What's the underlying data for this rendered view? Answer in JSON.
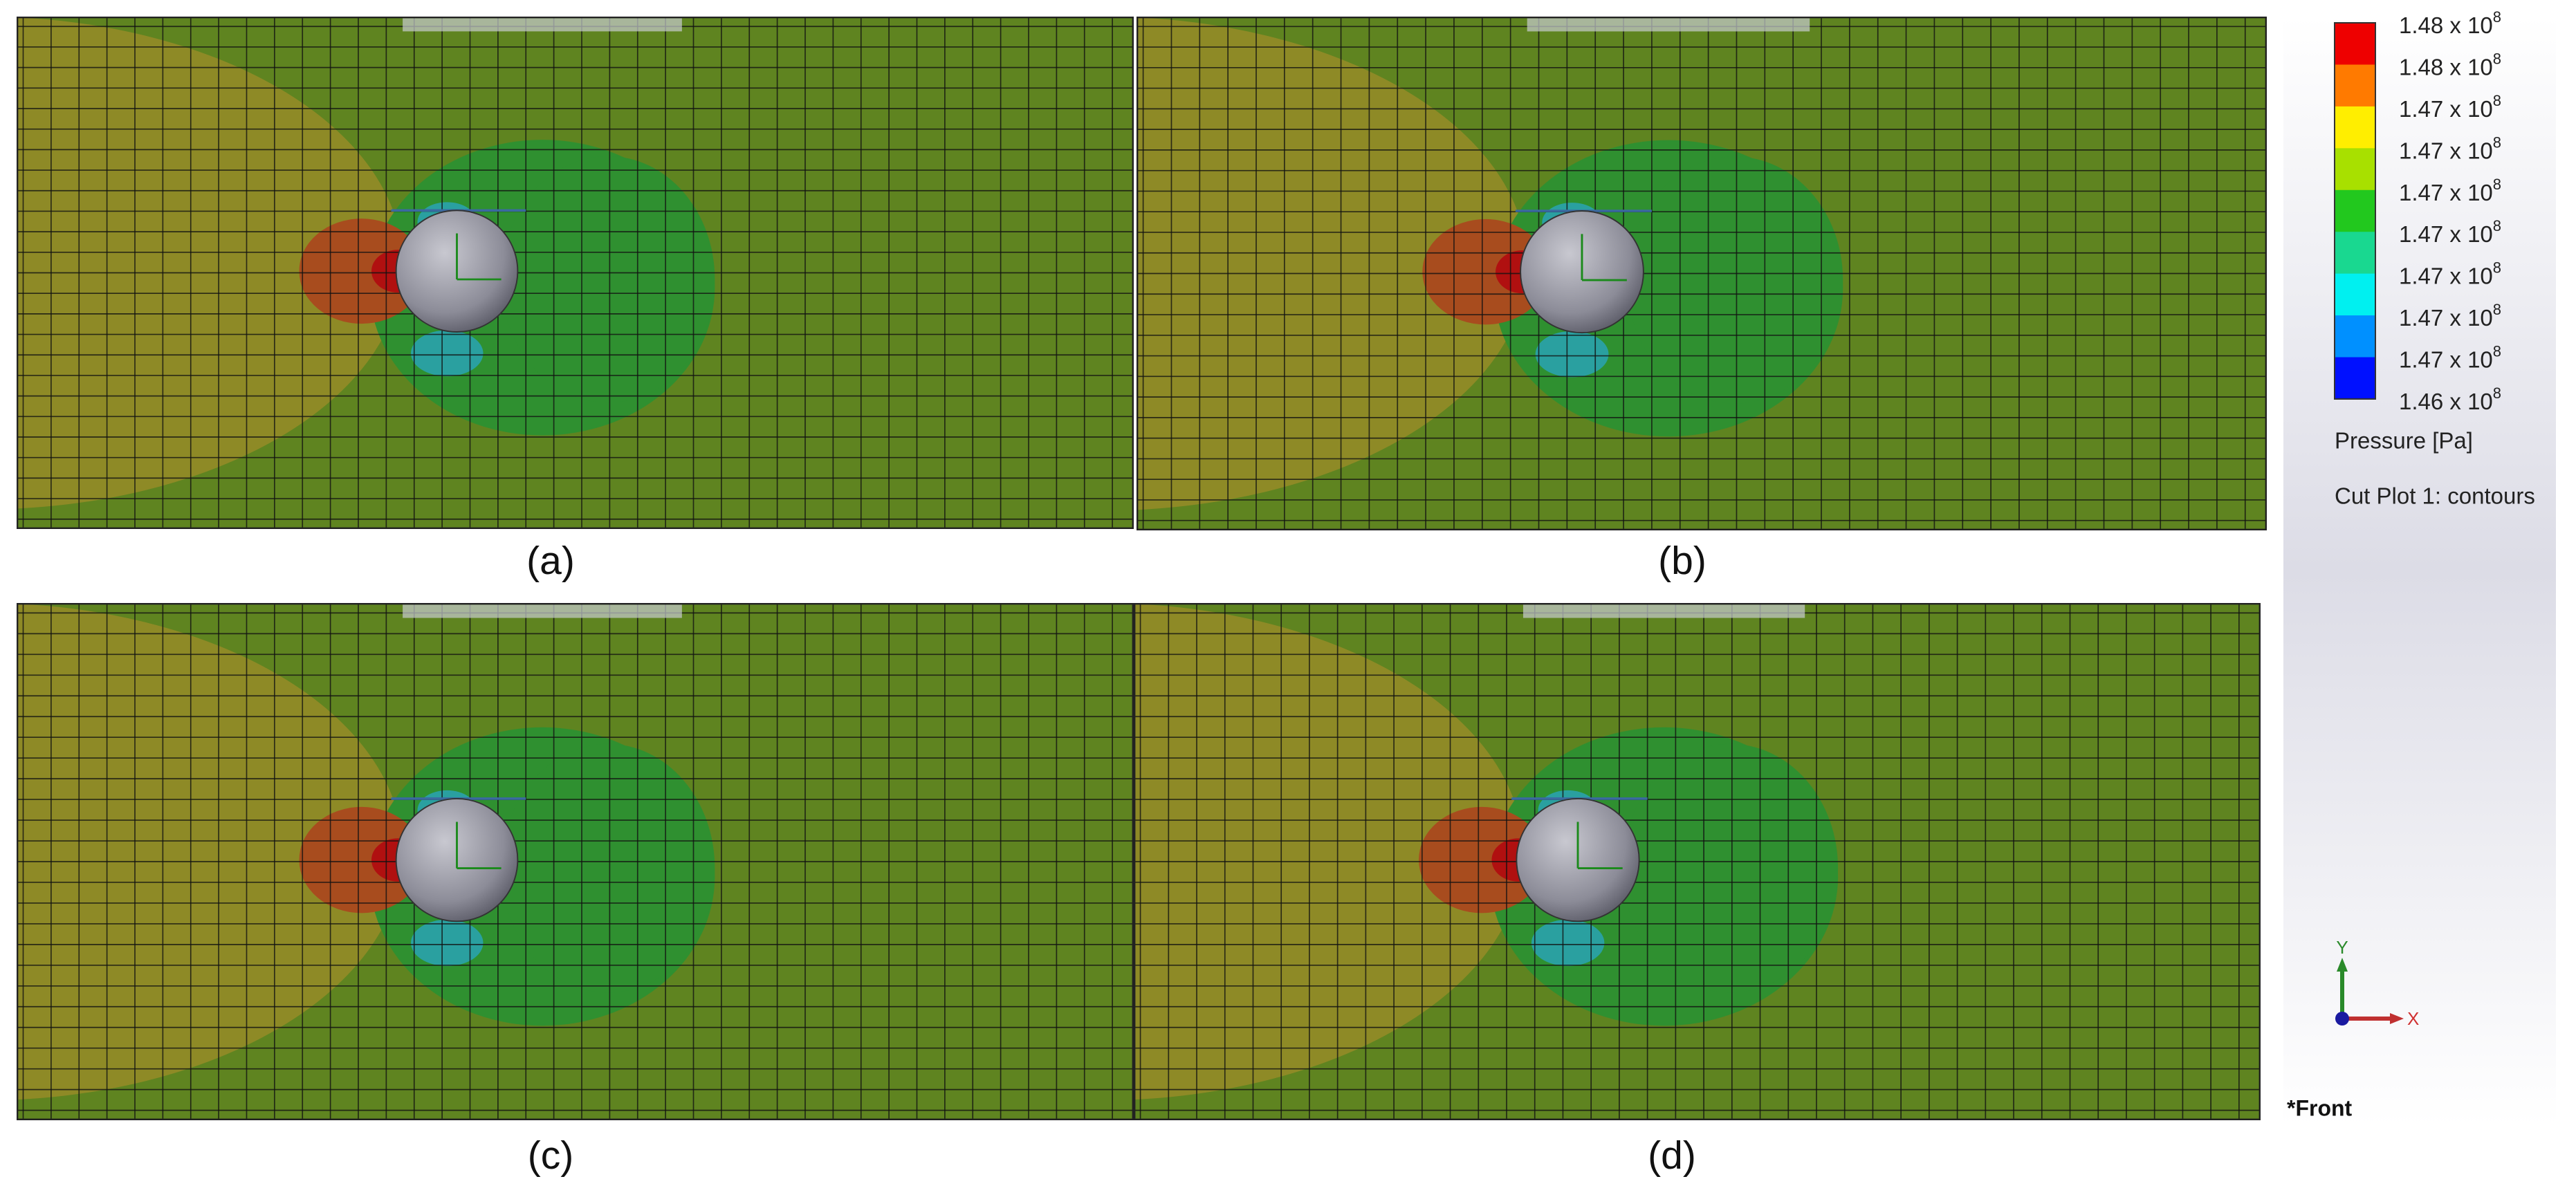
{
  "panels": [
    {
      "label": "(a)"
    },
    {
      "label": "(b)"
    },
    {
      "label": "(c)"
    },
    {
      "label": "(d)"
    }
  ],
  "legend": {
    "labels": [
      {
        "text": "1.48 x 10",
        "sup": "8"
      },
      {
        "text": "1.48 x 10",
        "sup": "8"
      },
      {
        "text": "1.47 x 10",
        "sup": "8"
      },
      {
        "text": "1.47 x 10",
        "sup": "8"
      },
      {
        "text": "1.47 x 10",
        "sup": "8"
      },
      {
        "text": "1.47 x 10",
        "sup": "8"
      },
      {
        "text": "1.47 x 10",
        "sup": "8"
      },
      {
        "text": "1.47 x 10",
        "sup": "8"
      },
      {
        "text": "1.47 x 10",
        "sup": "8"
      },
      {
        "text": "1.46 x 10",
        "sup": "8"
      }
    ],
    "colors": [
      "#ee0000",
      "#ff7a00",
      "#ffee00",
      "#a8e000",
      "#22c81e",
      "#19d890",
      "#00f0f0",
      "#0090ff",
      "#0010ff"
    ],
    "quantity": "Pressure [Pa]",
    "plot": "Cut Plot 1: contours"
  },
  "triad": {
    "y": "Y",
    "x": "X"
  },
  "view": "*Front"
}
